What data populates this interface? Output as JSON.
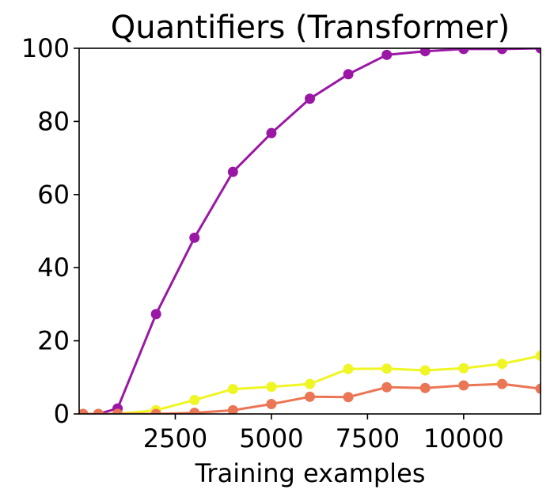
{
  "chart_data": {
    "type": "line",
    "title": "Quantifiers (Transformer)",
    "xlabel": "Training examples",
    "ylabel": "",
    "xlim": [
      0,
      12000
    ],
    "ylim": [
      0,
      100
    ],
    "xticks": [
      2500,
      5000,
      7500,
      10000
    ],
    "xtick_labels": [
      "2500",
      "5000",
      "7500",
      "10000"
    ],
    "yticks": [
      0,
      20,
      40,
      60,
      80,
      100
    ],
    "ytick_labels": [
      "0",
      "20",
      "40",
      "60",
      "80",
      "100"
    ],
    "grid": false,
    "x": [
      100,
      500,
      1000,
      2000,
      3000,
      4000,
      5000,
      6000,
      7000,
      8000,
      9000,
      10000,
      11000,
      12000
    ],
    "series": [
      {
        "color": "#9a17a5",
        "values": [
          0,
          0,
          1.5,
          27.3,
          48.2,
          66.2,
          76.8,
          86.2,
          92.9,
          98.2,
          99.2,
          99.8,
          99.8,
          100
        ]
      },
      {
        "color": "#f0f524",
        "values": [
          0,
          0,
          0,
          1.0,
          3.8,
          6.8,
          7.4,
          8.2,
          12.3,
          12.4,
          11.9,
          12.5,
          13.7,
          15.9
        ]
      },
      {
        "color": "#eb7655",
        "values": [
          0,
          0,
          0,
          0,
          0.3,
          1.0,
          2.7,
          4.7,
          4.6,
          7.3,
          7.1,
          7.8,
          8.2,
          6.9
        ]
      }
    ]
  }
}
